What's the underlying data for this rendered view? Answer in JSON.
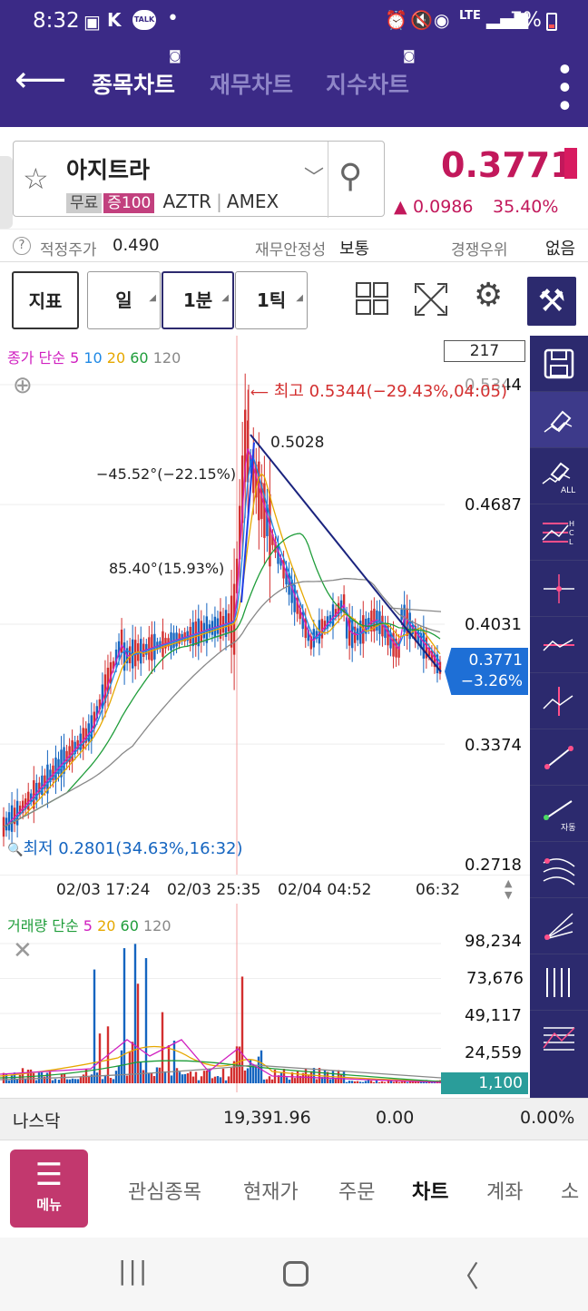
{
  "status": {
    "time": "8:32",
    "icons_left": [
      "image-icon",
      "vpn-icon",
      "talk-icon",
      "dot-icon"
    ],
    "battery": "7%",
    "lte": "LTE"
  },
  "header": {
    "tabs": [
      {
        "label": "종목차트",
        "active": true
      },
      {
        "label": "재무차트",
        "active": false
      },
      {
        "label": "지수차트",
        "active": false
      }
    ]
  },
  "stock": {
    "name": "아지트라",
    "tags": [
      "무료",
      "증100"
    ],
    "code": "AZTR",
    "exchange": "AMEX",
    "price": "0.3771",
    "change": "0.0986",
    "change_pct": "35.40%"
  },
  "info_row": {
    "fair_label": "적정주가",
    "fair_value": "0.490",
    "fin_label": "재무안정성",
    "fin_value": "보통",
    "comp_label": "경쟁우위",
    "comp_value": "없음"
  },
  "toolbar": {
    "indicator": "지표",
    "periods": [
      "일",
      "1분",
      "1틱"
    ],
    "selected": "1분"
  },
  "chart": {
    "legend_prefix": "종가 단순",
    "ma_periods": [
      "5",
      "10",
      "20",
      "60",
      "120"
    ],
    "count_box": "217",
    "y_ticks": [
      "0.5344",
      "0.4687",
      "0.4031",
      "0.3374",
      "0.2718"
    ],
    "high_label": "최고 0.5344(−29.43%,04:05)",
    "low_label": "최저 0.2801(34.63%,16:32)",
    "angle_label1": "−45.52°(−22.15%)",
    "angle_label2": "85.40°(15.93%)",
    "level_label": "0.5028",
    "current_price": "0.3771",
    "current_pct": "−3.26%",
    "x_labels": [
      "02/03 17:24",
      "02/03 25:35",
      "02/04 04:52",
      "06:32"
    ]
  },
  "volume": {
    "legend_prefix": "거래량 단순",
    "ma_periods": [
      "5",
      "20",
      "60",
      "120"
    ],
    "y_ticks": [
      "98,234",
      "73,676",
      "49,117",
      "24,559"
    ],
    "current": "1,100"
  },
  "index_row": {
    "name": "나스닥",
    "value": "19,391.96",
    "change": "0.00",
    "pct": "0.00%"
  },
  "bottom_nav": {
    "menu": "메뉴",
    "items": [
      "관심종목",
      "현재가",
      "주문",
      "차트",
      "계좌",
      "소"
    ],
    "active": "차트"
  },
  "colors": {
    "header": "#3b2a86",
    "price": "#c2185b",
    "up": "#d32f2f",
    "blue": "#1565c0",
    "ma5": "#d020c0",
    "ma10": "#1e88e5",
    "ma20": "#e6a800",
    "ma60": "#1f9d3a",
    "ma120": "#888888"
  }
}
